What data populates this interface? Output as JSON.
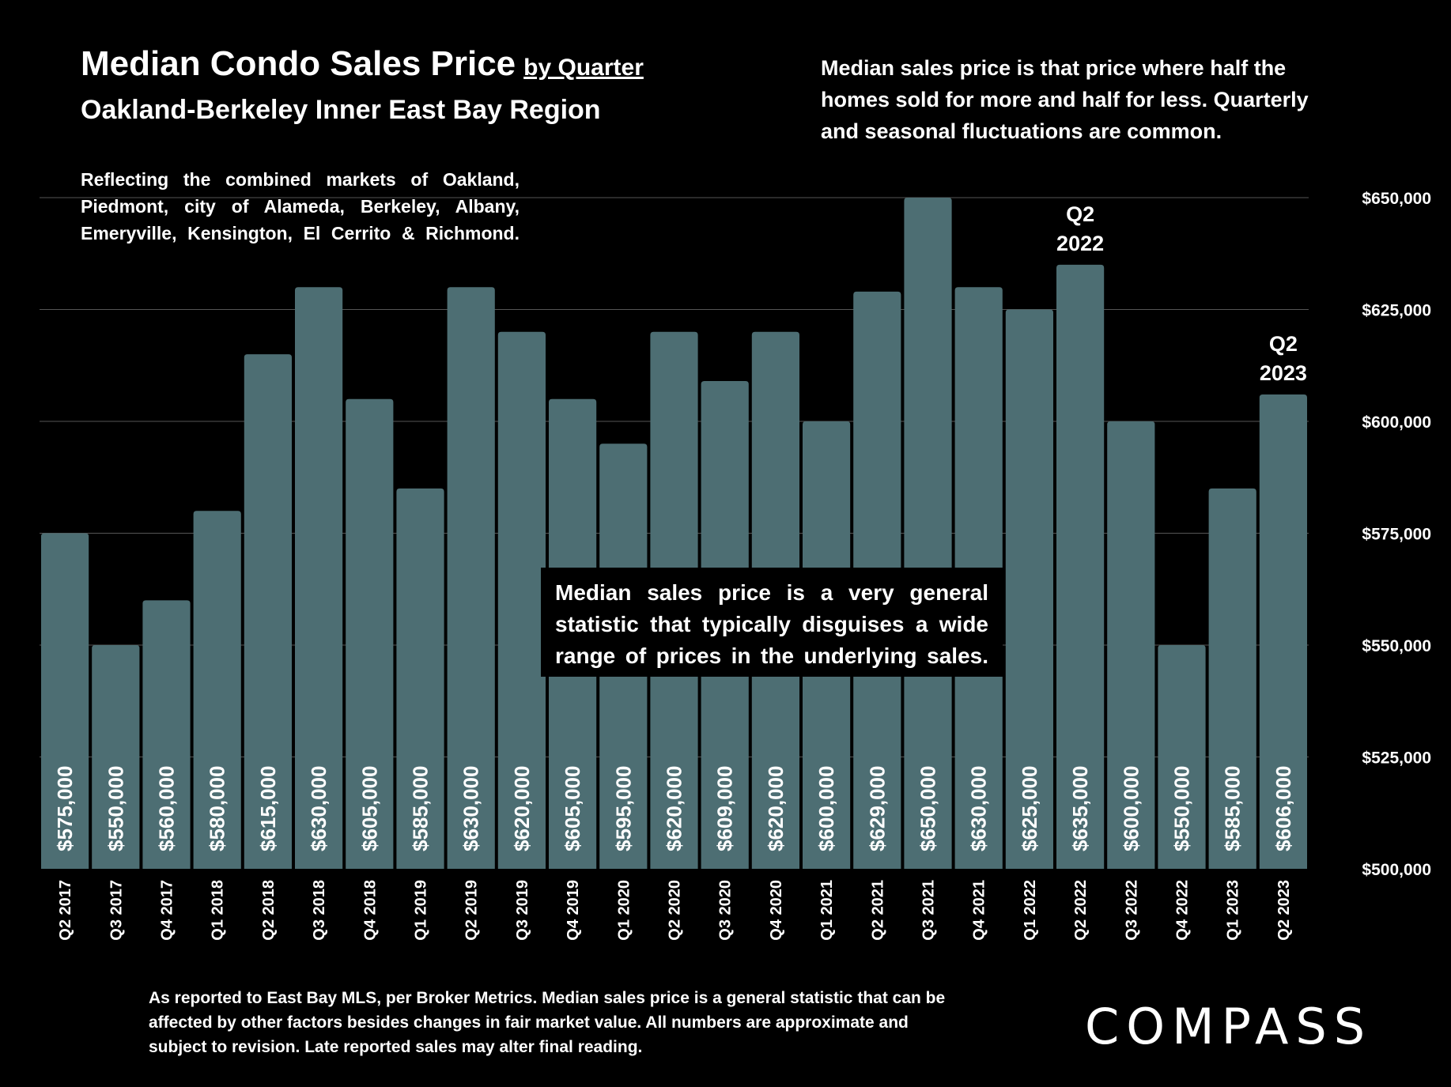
{
  "title": "Median Condo Sales Price",
  "title_suffix": "by Quarter",
  "subtitle": "Oakland-Berkeley Inner East Bay Region",
  "region_note_lines": [
    "Reflecting the combined markets of Oakland,",
    "Piedmont, city of Alameda, Berkeley, Albany,",
    "Emeryville, Kensington, El Cerrito & Richmond."
  ],
  "definition_note": "Median sales price is that price where half the homes sold for more and half for less. Quarterly and seasonal fluctuations are common.",
  "disclaimer_box": "Median sales price is a very general statistic that typically disguises a wide range of prices in the underlying sales.",
  "footer_note": "As reported to East Bay MLS, per Broker Metrics. Median sales price is a general statistic that can be affected by other factors besides changes in fair market value. All numbers are approximate and subject to revision. Late reported sales may alter final reading.",
  "brand": "COMPASS",
  "colors": {
    "bar": "#4d6e73",
    "grid": "#555555",
    "background": "#000000"
  },
  "chart_data": {
    "type": "bar",
    "categories": [
      "Q2 2017",
      "Q3 2017",
      "Q4 2017",
      "Q1 2018",
      "Q2 2018",
      "Q3 2018",
      "Q4 2018",
      "Q1 2019",
      "Q2 2019",
      "Q3 2019",
      "Q4 2019",
      "Q1 2020",
      "Q2 2020",
      "Q3 2020",
      "Q4 2020",
      "Q1 2021",
      "Q2 2021",
      "Q3 2021",
      "Q4 2021",
      "Q1 2022",
      "Q2 2022",
      "Q3 2022",
      "Q4 2022",
      "Q1 2023",
      "Q2 2023"
    ],
    "values": [
      575000,
      550000,
      560000,
      580000,
      615000,
      630000,
      605000,
      585000,
      630000,
      620000,
      605000,
      595000,
      620000,
      609000,
      620000,
      600000,
      629000,
      650000,
      630000,
      625000,
      635000,
      600000,
      550000,
      585000,
      606000
    ],
    "value_labels": [
      "$575,000",
      "$550,000",
      "$560,000",
      "$580,000",
      "$615,000",
      "$630,000",
      "$605,000",
      "$585,000",
      "$630,000",
      "$620,000",
      "$605,000",
      "$595,000",
      "$620,000",
      "$609,000",
      "$620,000",
      "$600,000",
      "$629,000",
      "$650,000",
      "$630,000",
      "$625,000",
      "$635,000",
      "$600,000",
      "$550,000",
      "$585,000",
      "$606,000"
    ],
    "ylim": [
      500000,
      650000
    ],
    "yticks": [
      500000,
      525000,
      550000,
      575000,
      600000,
      625000,
      650000
    ],
    "ytick_labels": [
      "$500,000",
      "$525,000",
      "$550,000",
      "$575,000",
      "$600,000",
      "$625,000",
      "$650,000"
    ],
    "y_axis_side": "right",
    "grid": true,
    "annotations": [
      {
        "category": "Q2 2022",
        "lines": [
          "Q2",
          "2022"
        ]
      },
      {
        "category": "Q2 2023",
        "lines": [
          "Q2",
          "2023"
        ]
      }
    ]
  }
}
